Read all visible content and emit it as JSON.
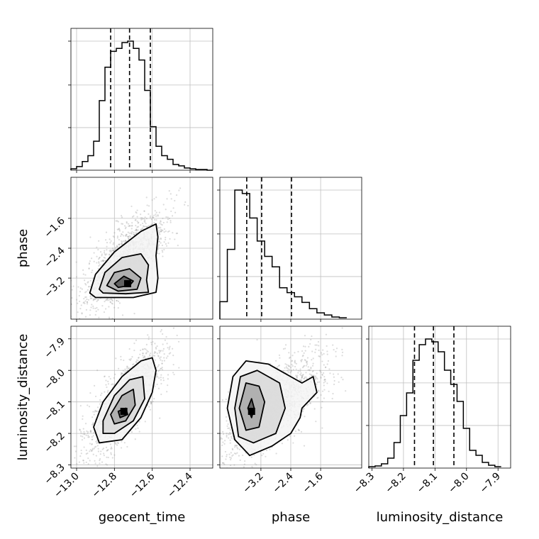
{
  "chart_data": {
    "type": "corner",
    "parameters": [
      "geocent_time",
      "phase",
      "luminosity_distance"
    ],
    "axis_labels": {
      "bottom": [
        "geocent_time",
        "phase",
        "luminosity_distance"
      ],
      "left": [
        "phase",
        "luminosity_distance"
      ]
    },
    "ranges": {
      "geocent_time": [
        -13.03,
        -12.28
      ],
      "phase": [
        -4.3,
        -0.5
      ],
      "luminosity_distance": [
        -8.31,
        -7.86
      ]
    },
    "ticks": {
      "geocent_time": {
        "values": [
          -13.0,
          -12.8,
          -12.6,
          -12.4
        ],
        "labels": [
          "−13.0",
          "−12.8",
          "−12.6",
          "−12.4"
        ]
      },
      "phase": {
        "values": [
          -3.2,
          -2.4,
          -1.6
        ],
        "labels": [
          "−3.2",
          "−2.4",
          "−1.6"
        ]
      },
      "luminosity_distance": {
        "values": [
          -8.3,
          -8.2,
          -8.1,
          -8.0,
          -7.9
        ],
        "labels": [
          "−8.3",
          "−8.2",
          "−8.1",
          "−8.0",
          "−7.9"
        ]
      }
    },
    "histograms": [
      {
        "parameter": "geocent_time",
        "bin_edges": [
          -13.03,
          -13.0,
          -12.97,
          -12.94,
          -12.91,
          -12.88,
          -12.85,
          -12.82,
          -12.79,
          -12.76,
          -12.73,
          -12.7,
          -12.67,
          -12.64,
          -12.61,
          -12.58,
          -12.55,
          -12.52,
          -12.49,
          -12.46,
          -12.43,
          -12.4,
          -12.37,
          -12.34,
          -12.31,
          -12.28
        ],
        "counts": [
          2,
          5,
          12,
          20,
          40,
          96,
          142,
          164,
          168,
          176,
          178,
          168,
          152,
          110,
          60,
          33,
          20,
          15,
          8,
          6,
          3,
          2,
          1,
          1,
          0
        ],
        "quantiles": [
          -12.82,
          -12.72,
          -12.61
        ]
      },
      {
        "parameter": "phase",
        "bin_edges": [
          -4.3,
          -4.1,
          -3.9,
          -3.7,
          -3.5,
          -3.3,
          -3.1,
          -2.9,
          -2.7,
          -2.5,
          -2.3,
          -2.1,
          -1.9,
          -1.7,
          -1.5,
          -1.3,
          -1.1,
          -0.9
        ],
        "counts": [
          25,
          100,
          185,
          180,
          145,
          112,
          90,
          75,
          45,
          38,
          32,
          24,
          15,
          9,
          6,
          3,
          2
        ],
        "quantiles": [
          -3.58,
          -3.18,
          -2.38
        ]
      },
      {
        "parameter": "luminosity_distance",
        "bin_edges": [
          -8.31,
          -8.29,
          -8.27,
          -8.25,
          -8.23,
          -8.21,
          -8.19,
          -8.17,
          -8.15,
          -8.13,
          -8.11,
          -8.09,
          -8.07,
          -8.05,
          -8.03,
          -8.01,
          -7.99,
          -7.97,
          -7.95,
          -7.93,
          -7.91,
          -7.89
        ],
        "counts": [
          2,
          3,
          6,
          14,
          36,
          74,
          106,
          152,
          174,
          182,
          178,
          164,
          138,
          118,
          94,
          56,
          25,
          18,
          8,
          4,
          2
        ],
        "quantiles": [
          -8.165,
          -8.105,
          -8.04
        ]
      }
    ],
    "panels_2d": [
      {
        "x": "geocent_time",
        "y": "phase",
        "peak": [
          -12.73,
          -3.35
        ],
        "contours": [
          [
            [
              -12.8,
              -3.35
            ],
            [
              -12.75,
              -3.15
            ],
            [
              -12.7,
              -3.28
            ],
            [
              -12.72,
              -3.4
            ],
            [
              -12.78,
              -3.45
            ]
          ],
          [
            [
              -12.84,
              -3.4
            ],
            [
              -12.8,
              -3.05
            ],
            [
              -12.72,
              -2.95
            ],
            [
              -12.66,
              -3.2
            ],
            [
              -12.68,
              -3.5
            ],
            [
              -12.78,
              -3.55
            ]
          ],
          [
            [
              -12.88,
              -3.5
            ],
            [
              -12.85,
              -3.05
            ],
            [
              -12.76,
              -2.65
            ],
            [
              -12.66,
              -2.55
            ],
            [
              -12.62,
              -2.85
            ],
            [
              -12.63,
              -3.25
            ],
            [
              -12.62,
              -3.58
            ],
            [
              -12.74,
              -3.62
            ],
            [
              -12.86,
              -3.6
            ]
          ],
          [
            [
              -12.93,
              -3.6
            ],
            [
              -12.9,
              -3.1
            ],
            [
              -12.8,
              -2.5
            ],
            [
              -12.66,
              -1.95
            ],
            [
              -12.58,
              -1.75
            ],
            [
              -12.57,
              -2.1
            ],
            [
              -12.58,
              -2.6
            ],
            [
              -12.57,
              -3.2
            ],
            [
              -12.58,
              -3.58
            ],
            [
              -12.7,
              -3.72
            ],
            [
              -12.9,
              -3.72
            ]
          ]
        ]
      },
      {
        "x": "geocent_time",
        "y": "luminosity_distance",
        "peak": [
          -12.75,
          -8.13
        ],
        "contours": [
          [
            [
              -12.78,
              -8.13
            ],
            [
              -12.74,
              -8.12
            ],
            [
              -12.73,
              -8.14
            ],
            [
              -12.77,
              -8.15
            ]
          ],
          [
            [
              -12.82,
              -8.14
            ],
            [
              -12.76,
              -8.08
            ],
            [
              -12.7,
              -8.06
            ],
            [
              -12.69,
              -8.11
            ],
            [
              -12.74,
              -8.16
            ],
            [
              -12.8,
              -8.17
            ]
          ],
          [
            [
              -12.86,
              -8.16
            ],
            [
              -12.8,
              -8.08
            ],
            [
              -12.72,
              -8.03
            ],
            [
              -12.65,
              -8.02
            ],
            [
              -12.64,
              -8.09
            ],
            [
              -12.7,
              -8.16
            ],
            [
              -12.8,
              -8.2
            ],
            [
              -12.86,
              -8.2
            ]
          ],
          [
            [
              -12.91,
              -8.18
            ],
            [
              -12.86,
              -8.1
            ],
            [
              -12.76,
              -8.02
            ],
            [
              -12.66,
              -7.97
            ],
            [
              -12.6,
              -7.96
            ],
            [
              -12.58,
              -8.0
            ],
            [
              -12.6,
              -8.07
            ],
            [
              -12.66,
              -8.15
            ],
            [
              -12.76,
              -8.22
            ],
            [
              -12.88,
              -8.23
            ]
          ]
        ]
      },
      {
        "x": "phase",
        "y": "luminosity_distance",
        "peak": [
          -3.45,
          -8.13
        ],
        "contours": [
          [
            [
              -3.55,
              -8.12
            ],
            [
              -3.45,
              -8.09
            ],
            [
              -3.38,
              -8.12
            ],
            [
              -3.45,
              -8.15
            ]
          ],
          [
            [
              -3.78,
              -8.12
            ],
            [
              -3.6,
              -8.04
            ],
            [
              -3.25,
              -8.05
            ],
            [
              -3.1,
              -8.1
            ],
            [
              -3.25,
              -8.18
            ],
            [
              -3.6,
              -8.19
            ]
          ],
          [
            [
              -3.9,
              -8.12
            ],
            [
              -3.75,
              -8.02
            ],
            [
              -3.3,
              -8.0
            ],
            [
              -2.7,
              -8.04
            ],
            [
              -2.55,
              -8.12
            ],
            [
              -2.8,
              -8.2
            ],
            [
              -3.4,
              -8.23
            ],
            [
              -3.8,
              -8.21
            ]
          ],
          [
            [
              -4.1,
              -8.12
            ],
            [
              -3.95,
              -8.02
            ],
            [
              -3.6,
              -7.97
            ],
            [
              -3.0,
              -7.98
            ],
            [
              -2.4,
              -8.02
            ],
            [
              -2.1,
              -8.04
            ],
            [
              -1.8,
              -8.02
            ],
            [
              -1.7,
              -8.07
            ],
            [
              -2.1,
              -8.12
            ],
            [
              -2.15,
              -8.15
            ],
            [
              -2.4,
              -8.2
            ],
            [
              -2.9,
              -8.24
            ],
            [
              -3.5,
              -8.27
            ],
            [
              -3.9,
              -8.22
            ]
          ]
        ]
      }
    ]
  }
}
